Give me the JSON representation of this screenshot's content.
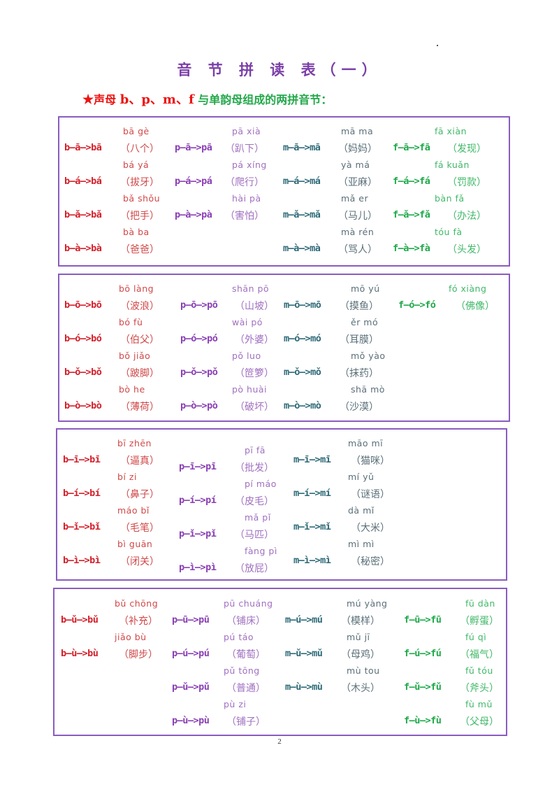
{
  "title": "音 节 拼 读 表（一）",
  "subtitle": {
    "star": "★",
    "prefix": "声母",
    "letters": "b、p、m、f",
    "suffix": "与单韵母组成的两拼音节："
  },
  "colors": {
    "b": "#d3202a",
    "p": "#8a3fb4",
    "m": "#2e6a78",
    "f": "#1faa4a",
    "border": "#8a5cc0",
    "title": "#7b3fa8"
  },
  "sections": [
    {
      "vowel": "a",
      "b": [
        {
          "pinyin": "bā gè",
          "spell": "b—ā—>bā",
          "word": "（八个）"
        },
        {
          "pinyin": "bá yá",
          "spell": "b—á—>bá",
          "word": "（拔牙）"
        },
        {
          "pinyin": "bǎ shǒu",
          "spell": "b—ǎ—>bǎ",
          "word": "（把手）"
        },
        {
          "pinyin": "bà ba",
          "spell": "b—à—>bà",
          "word": "（爸爸）"
        }
      ],
      "p": [
        {
          "pinyin": "pā xià",
          "spell": "p—ā—>pā",
          "word": "（趴下）"
        },
        {
          "pinyin": "pá xíng",
          "spell": "p—á—>pá",
          "word": "（爬行）"
        },
        {
          "pinyin": "hài pà",
          "spell": "p—à—>pà",
          "word": "（害怕）"
        }
      ],
      "m": [
        {
          "pinyin": "mā ma",
          "spell": "m—ā—>mā",
          "word": "（妈妈）"
        },
        {
          "pinyin": "yà má",
          "spell": "m—á—>má",
          "word": "（亚麻）"
        },
        {
          "pinyin": "mǎ er",
          "spell": "m—ǎ—>mǎ",
          "word": "（马儿）"
        },
        {
          "pinyin": "mà rén",
          "spell": "m—à—>mà",
          "word": "（骂人）"
        }
      ],
      "f": [
        {
          "pinyin": "fā xiàn",
          "spell": "f—ā—>fā",
          "word": "（发现）"
        },
        {
          "pinyin": "fá kuǎn",
          "spell": "f—á—>fá",
          "word": "（罚款）"
        },
        {
          "pinyin": "bàn fǎ",
          "spell": "f—ǎ—>fǎ",
          "word": "（办法）"
        },
        {
          "pinyin": "tóu fà",
          "spell": "f—à—>fà",
          "word": "（头发）"
        }
      ]
    },
    {
      "vowel": "o",
      "b": [
        {
          "pinyin": "bō làng",
          "spell": "b—ō—>bō",
          "word": "（波浪）"
        },
        {
          "pinyin": "bó fù",
          "spell": "b—ó—>bó",
          "word": "（伯父）"
        },
        {
          "pinyin": "bǒ jiǎo",
          "spell": "b—ǒ—>bǒ",
          "word": "（跛脚）"
        },
        {
          "pinyin": "bò he",
          "spell": "b—ò—>bò",
          "word": "（薄荷）"
        }
      ],
      "p": [
        {
          "pinyin": "shān  pō",
          "spell": "p—ō—>pō",
          "word": "（山坡）"
        },
        {
          "pinyin": "wài pó",
          "spell": "p—ó—>pó",
          "word": "（外婆）"
        },
        {
          "pinyin": "pǒ luo",
          "spell": "p—ǒ—>pǒ",
          "word": "（笸箩）"
        },
        {
          "pinyin": "pò huài",
          "spell": "p—ò—>pò",
          "word": "（破坏）"
        }
      ],
      "m": [
        {
          "pinyin": "mō yú",
          "spell": "m—ō—>mō",
          "word": "（摸鱼）"
        },
        {
          "pinyin": "ěr mó",
          "spell": "m—ó—>mó",
          "word": "（耳膜）"
        },
        {
          "pinyin": "mǒ yào",
          "spell": "m—ǒ—>mǒ",
          "word": "（抹药）"
        },
        {
          "pinyin": "shā mò",
          "spell": "m—ò—>mò",
          "word": "（沙漠）"
        }
      ],
      "f": [
        {
          "pinyin": "fó xiàng",
          "spell": "f—ó—>fó",
          "word": "（佛像）"
        }
      ]
    },
    {
      "vowel": "i",
      "b": [
        {
          "pinyin": "bī zhēn",
          "spell": "b—ī—>bī",
          "word": "（逼真）"
        },
        {
          "pinyin": "bí zi",
          "spell": "b—í—>bí",
          "word": "（鼻子）"
        },
        {
          "pinyin": "máo bǐ",
          "spell": "b—ǐ—>bǐ",
          "word": "（毛笔）"
        },
        {
          "pinyin": "bì guān",
          "spell": "b—ì—>bì",
          "word": "（闭关）"
        }
      ],
      "p": [
        {
          "pinyin": "pī fā",
          "spell": "p—ī—>pī",
          "word": "（批发）"
        },
        {
          "pinyin": "pí máo",
          "spell": "p—í—>pí",
          "word": "（皮毛）"
        },
        {
          "pinyin": "mǎ pǐ",
          "spell": "p—ǐ—>pǐ",
          "word": "（马匹）"
        },
        {
          "pinyin": "fàng pì",
          "spell": "p—ì—>pì",
          "word": "（放屁）"
        }
      ],
      "m": [
        {
          "pinyin": "māo mī",
          "spell": "m—ī—>mī",
          "word": "（猫咪）"
        },
        {
          "pinyin": "mí yǔ",
          "spell": "m—í—>mí",
          "word": "（谜语）"
        },
        {
          "pinyin": "dà mǐ",
          "spell": "m—ǐ—>mǐ",
          "word": "（大米）"
        },
        {
          "pinyin": "mì mì",
          "spell": "m—ì—>mì",
          "word": "（秘密）"
        }
      ],
      "f": []
    },
    {
      "vowel": "u",
      "b": [
        {
          "pinyin": "bǔ chōng",
          "spell": "b—ǔ—>bǔ",
          "word": "（补充）"
        },
        {
          "pinyin": "jiǎo bù",
          "spell": "b—ù—>bù",
          "word": "（脚步）"
        }
      ],
      "p": [
        {
          "pinyin": "pū chuáng",
          "spell": "p—ū—>pū",
          "word": "（铺床）"
        },
        {
          "pinyin": "pú táo",
          "spell": "p—ú—>pú",
          "word": "（葡萄）"
        },
        {
          "pinyin": "pǔ tōng",
          "spell": "p—ǔ—>pǔ",
          "word": "（普通）"
        },
        {
          "pinyin": "pù zi",
          "spell": "p—ù—>pù",
          "word": "（铺子）"
        }
      ],
      "m": [
        {
          "pinyin": "mú yàng",
          "spell": "m—ú—>mú",
          "word": "（模样）"
        },
        {
          "pinyin": "mǔ jī",
          "spell": "m—ǔ—>mǔ",
          "word": "（母鸡）"
        },
        {
          "pinyin": "mù tou",
          "spell": "m—ù—>mù",
          "word": "（木头）"
        }
      ],
      "f": [
        {
          "pinyin": "fū dàn",
          "spell": "f—ū—>fū",
          "word": "（孵蛋）"
        },
        {
          "pinyin": "fú qì",
          "spell": "f—ú—>fú",
          "word": "（福气）"
        },
        {
          "pinyin": "fǔ tóu",
          "spell": "f—ǔ—>fǔ",
          "word": "（斧头）"
        },
        {
          "pinyin": "fù mǔ",
          "spell": "f—ù—>fù",
          "word": "（父母）"
        }
      ]
    }
  ],
  "page_number": "2"
}
